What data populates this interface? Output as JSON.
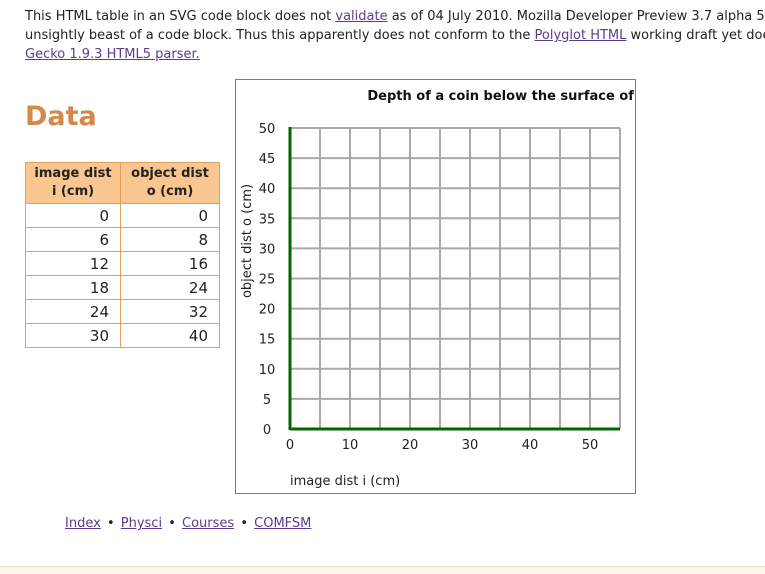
{
  "notice": {
    "t1": "This HTML table in an SVG code block does not ",
    "link_validate": "validate",
    "t2": " as of 04 July 2010. Mozilla Developer Preview 3.7 alpha 5",
    "t3": "unsightly beast of a code block. Thus this apparently does not conform to the ",
    "link_polyglot": "Polyglot HTML",
    "t4": " working draft yet doe",
    "link_gecko": "Gecko 1.9.3 HTML5 parser."
  },
  "section_heading": "Data",
  "table": {
    "headers": [
      "image dist i (cm)",
      "object dist o (cm)"
    ],
    "rows": [
      [
        "0",
        "0"
      ],
      [
        "6",
        "8"
      ],
      [
        "12",
        "16"
      ],
      [
        "18",
        "24"
      ],
      [
        "24",
        "32"
      ],
      [
        "30",
        "40"
      ]
    ]
  },
  "chart_data": {
    "type": "scatter",
    "title": "Depth of a coin below the surface of water",
    "xlabel": "image dist i (cm)",
    "ylabel": "object dist o (cm)",
    "xlim": [
      0,
      55
    ],
    "ylim": [
      0,
      50
    ],
    "xticks": [
      "0",
      "10",
      "20",
      "30",
      "40",
      "50"
    ],
    "yticks": [
      "0",
      "5",
      "10",
      "15",
      "20",
      "25",
      "30",
      "35",
      "40",
      "45",
      "50"
    ],
    "grid": true,
    "series": [],
    "axis_color": "#006600"
  },
  "footer": {
    "links": [
      "Index",
      "Physci",
      "Courses",
      "COMFSM"
    ],
    "separator": "•"
  }
}
